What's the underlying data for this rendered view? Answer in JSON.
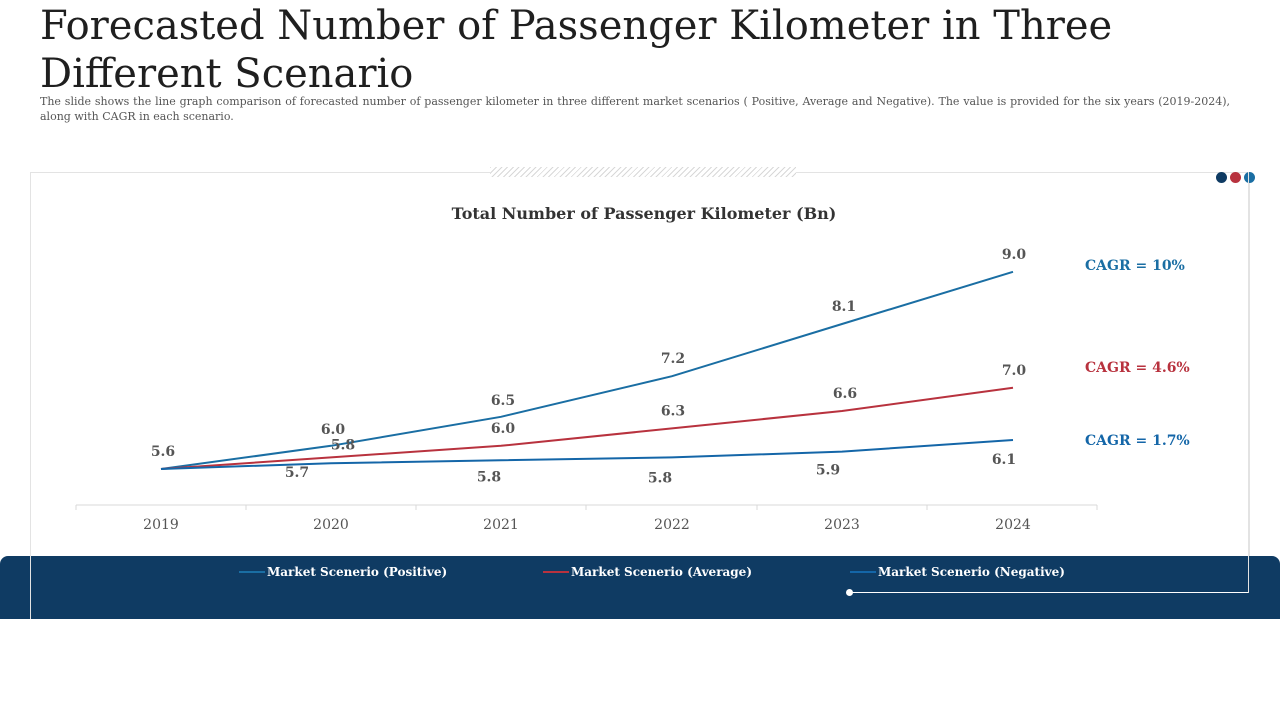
{
  "slide": {
    "title": "Forecasted Number of Passenger Kilometer in Three Different Scenario",
    "subtitle": "The slide shows the line graph comparison of forecasted number of passenger kilometer in three different market scenarios ( Positive, Average and Negative). The value is provided for the six years (2019-2024), along with CAGR in each scenario."
  },
  "colors": {
    "positive": "#1a6ea3",
    "average": "#b8323e",
    "negative": "#1466a8",
    "band": "#0f3b63",
    "dot1": "#0f3b63",
    "dot2": "#b8323e",
    "dot3": "#1a6ea3"
  },
  "chart_data": {
    "type": "line",
    "title": "Total Number of Passenger Kilometer (Bn)",
    "x": [
      "2019",
      "2020",
      "2021",
      "2022",
      "2023",
      "2024"
    ],
    "ylim": [
      5.0,
      9.5
    ],
    "grid": false,
    "legend_position": "bottom",
    "series": [
      {
        "name": "Market Scenerio (Positive)",
        "values": [
          5.6,
          6.0,
          6.5,
          7.2,
          8.1,
          9.0
        ],
        "labels": [
          "5.6",
          "6.0",
          "6.5",
          "7.2",
          "8.1",
          "9.0"
        ],
        "cagr": "CAGR = 10%",
        "color_key": "positive"
      },
      {
        "name": "Market Scenerio (Average)",
        "values": [
          5.6,
          5.8,
          6.0,
          6.3,
          6.6,
          7.0
        ],
        "labels": [
          "",
          "5.8",
          "6.0",
          "6.3",
          "6.6",
          "7.0"
        ],
        "cagr": "CAGR = 4.6%",
        "color_key": "average"
      },
      {
        "name": "Market Scenerio (Negative)",
        "values": [
          5.6,
          5.7,
          5.75,
          5.8,
          5.9,
          6.1
        ],
        "labels": [
          "",
          "5.7",
          "5.8",
          "5.8",
          "5.9",
          "6.1"
        ],
        "cagr": "CAGR = 1.7%",
        "color_key": "negative"
      }
    ]
  }
}
